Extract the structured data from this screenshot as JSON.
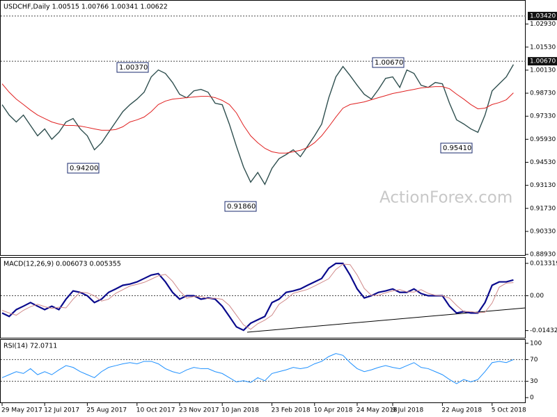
{
  "chart_data": [
    {
      "type": "line",
      "title": "USDCHF,Daily 1.00515 1.00766 1.00341 1.00622",
      "watermark": "ActionForex.com",
      "ylim": [
        0.8885,
        1.0435
      ],
      "yticks": [
        {
          "value": 1.0293,
          "label": "1.02930"
        },
        {
          "value": 1.0153,
          "label": "1.01530"
        },
        {
          "value": 1.0013,
          "label": "1.00130"
        },
        {
          "value": 0.9873,
          "label": "0.98730"
        },
        {
          "value": 0.9733,
          "label": "0.97330"
        },
        {
          "value": 0.9593,
          "label": "0.95930"
        },
        {
          "value": 0.9453,
          "label": "0.94530"
        },
        {
          "value": 0.9313,
          "label": "0.93130"
        },
        {
          "value": 0.9173,
          "label": "0.91730"
        },
        {
          "value": 0.9033,
          "label": "0.90330"
        },
        {
          "value": 0.8893,
          "label": "0.88930"
        }
      ],
      "levels": [
        {
          "value": 1.0342,
          "label": "1.03420"
        },
        {
          "value": 1.0067,
          "label": "1.00670"
        }
      ],
      "annotations": [
        "1.00370",
        "1.00670",
        "0.94200",
        "0.91860",
        "0.95410"
      ],
      "series": [
        {
          "color": "#2f4f4f",
          "values": [
            0.9803,
            0.974,
            0.9698,
            0.974,
            0.9677,
            0.9614,
            0.9656,
            0.9593,
            0.9635,
            0.9698,
            0.9719,
            0.9656,
            0.9614,
            0.9529,
            0.9571,
            0.9635,
            0.9698,
            0.9761,
            0.9803,
            0.9837,
            0.9879,
            0.9972,
            1.0014,
            0.9993,
            0.9938,
            0.9866,
            0.9845,
            0.9887,
            0.9896,
            0.9879,
            0.9812,
            0.9803,
            0.9685,
            0.955,
            0.9424,
            0.9332,
            0.9391,
            0.9319,
            0.9416,
            0.9475,
            0.95,
            0.9529,
            0.9487,
            0.955,
            0.9614,
            0.9685,
            0.9845,
            0.9972,
            1.0035,
            0.998,
            0.9921,
            0.9866,
            0.9837,
            0.9896,
            0.9963,
            0.9972,
            0.9908,
            1.0014,
            0.9993,
            0.9921,
            0.9908,
            0.9938,
            0.993,
            0.9812,
            0.9711,
            0.9686,
            0.9656,
            0.9635,
            0.974,
            0.9887,
            0.993,
            0.9972,
            1.0047
          ]
        },
        {
          "color": "#e02020",
          "values": [
            0.993,
            0.9879,
            0.9837,
            0.9804,
            0.977,
            0.974,
            0.9719,
            0.9698,
            0.9686,
            0.9677,
            0.9677,
            0.9673,
            0.9665,
            0.9656,
            0.9648,
            0.9648,
            0.9652,
            0.9669,
            0.9698,
            0.9711,
            0.9728,
            0.9761,
            0.9804,
            0.9825,
            0.9837,
            0.9841,
            0.9846,
            0.985,
            0.9854,
            0.9854,
            0.9846,
            0.9829,
            0.9804,
            0.9753,
            0.9677,
            0.9614,
            0.9572,
            0.9538,
            0.9517,
            0.9509,
            0.9509,
            0.9517,
            0.9526,
            0.9542,
            0.9572,
            0.9614,
            0.9669,
            0.9728,
            0.9782,
            0.9804,
            0.9812,
            0.982,
            0.9833,
            0.9846,
            0.9858,
            0.9871,
            0.9879,
            0.9888,
            0.9896,
            0.9905,
            0.9909,
            0.9913,
            0.9913,
            0.99,
            0.9867,
            0.9837,
            0.9804,
            0.9778,
            0.9782,
            0.9804,
            0.9816,
            0.9833,
            0.9875
          ]
        }
      ]
    },
    {
      "type": "line",
      "title": "MACD(12,26,9) 0.006073 0.005355",
      "ylim": [
        -0.017569,
        0.015585
      ],
      "yticks": [
        0.013319,
        {
          "value": 0,
          "label": "0.00"
        },
        -0.014323
      ],
      "levels": [
        0
      ],
      "series": [
        {
          "color": "#0a0a8c",
          "values": [
            -0.0071,
            -0.0085,
            -0.0057,
            -0.0043,
            -0.0028,
            -0.0043,
            -0.0057,
            -0.0043,
            -0.0057,
            -0.0014,
            0.002,
            0.0014,
            0,
            -0.0028,
            -0.0014,
            0.0014,
            0.0028,
            0.0043,
            0.0048,
            0.0057,
            0.0071,
            0.0085,
            0.0091,
            0.0057,
            0.0014,
            -0.0014,
            0,
            0,
            -0.0014,
            -0.0009,
            -0.0014,
            -0.0043,
            -0.0085,
            -0.0128,
            -0.0142,
            -0.0113,
            -0.0099,
            -0.0085,
            -0.0028,
            -0.0014,
            0.0014,
            0.002,
            0.0028,
            0.0043,
            0.0057,
            0.0071,
            0.0113,
            0.0133,
            0.0133,
            0.0085,
            0.0028,
            -0.0009,
            0,
            0.0014,
            0.002,
            0.0028,
            0.0014,
            0.0014,
            0.0028,
            0.0009,
            0,
            0,
            0,
            -0.0043,
            -0.0071,
            -0.0065,
            -0.0071,
            -0.0071,
            -0.0028,
            0.0043,
            0.0057,
            0.0057,
            0.0065
          ]
        },
        {
          "color": "#d08a8a",
          "values": [
            -0.006,
            -0.0071,
            -0.008,
            -0.006,
            -0.0045,
            -0.0035,
            -0.0045,
            -0.0052,
            -0.0047,
            -0.005,
            -0.0014,
            0.0015,
            0.0012,
            0,
            -0.0022,
            -0.0014,
            0.001,
            0.0025,
            0.004,
            0.0047,
            0.0055,
            0.0068,
            0.0082,
            0.0088,
            0.006,
            0.002,
            -0.001,
            -0.0003,
            -0.0003,
            -0.0012,
            -0.001,
            -0.0015,
            -0.004,
            -0.008,
            -0.012,
            -0.0138,
            -0.0115,
            -0.01,
            -0.008,
            -0.0035,
            -0.0015,
            0.001,
            0.0018,
            0.0026,
            0.004,
            0.0055,
            0.007,
            0.0108,
            0.013,
            0.0128,
            0.0085,
            0.003,
            0.0002,
            0.0002,
            0.0012,
            0.002,
            0.0025,
            0.0016,
            0.0015,
            0.0025,
            0.001,
            0.0002,
            0,
            -0.001,
            -0.004,
            -0.0065,
            -0.0065,
            -0.007,
            -0.0068,
            -0.003,
            0.0035,
            0.0052,
            0.0054
          ]
        }
      ]
    },
    {
      "type": "line",
      "title": "RSI(14) 72.0711",
      "ylim": [
        -10.1,
        106.3
      ],
      "yticks": [
        100,
        70,
        30,
        0
      ],
      "levels": [
        70,
        30
      ],
      "categories": [
        "29 May 2017",
        null,
        null,
        null,
        null,
        null,
        "12 Jul 2017",
        null,
        null,
        null,
        null,
        null,
        "25 Aug 2017",
        null,
        null,
        null,
        null,
        null,
        null,
        "10 Oct 2017",
        null,
        null,
        null,
        null,
        null,
        "23 Nov 2017",
        null,
        null,
        null,
        null,
        null,
        "10 Jan 2018",
        null,
        null,
        null,
        null,
        null,
        null,
        "23 Feb 2018",
        null,
        null,
        null,
        null,
        null,
        "10 Apr 2018",
        null,
        null,
        null,
        null,
        null,
        "24 May 2018",
        null,
        null,
        null,
        null,
        "9 Jul 2018",
        null,
        null,
        null,
        null,
        null,
        null,
        "22 Aug 2018",
        null,
        null,
        null,
        null,
        null,
        null,
        "5 Oct 2018",
        null,
        null,
        null
      ],
      "series": [
        {
          "color": "#1e90ff",
          "values": [
            36.7,
            42.2,
            47.8,
            44.4,
            53.3,
            42.2,
            47.8,
            42.2,
            51.1,
            58.9,
            55.6,
            47.8,
            42.2,
            36.7,
            47.8,
            55.6,
            58.9,
            62.2,
            64.4,
            62.2,
            66.7,
            66.7,
            62.2,
            53.3,
            47.8,
            44.4,
            51.1,
            55.6,
            53.3,
            53.3,
            47.8,
            44.4,
            36.7,
            28.9,
            31.1,
            27.8,
            36.7,
            31.1,
            44.4,
            47.8,
            51.1,
            55.6,
            53.3,
            55.6,
            62.2,
            66.7,
            75.6,
            81.1,
            77.8,
            64.4,
            53.3,
            47.8,
            51.1,
            55.6,
            58.9,
            55.6,
            53.3,
            58.9,
            64.4,
            55.6,
            53.3,
            47.8,
            42.2,
            33.3,
            25.6,
            33.3,
            28.9,
            33.3,
            47.8,
            64.4,
            66.7,
            64.4,
            70
          ]
        }
      ]
    }
  ]
}
